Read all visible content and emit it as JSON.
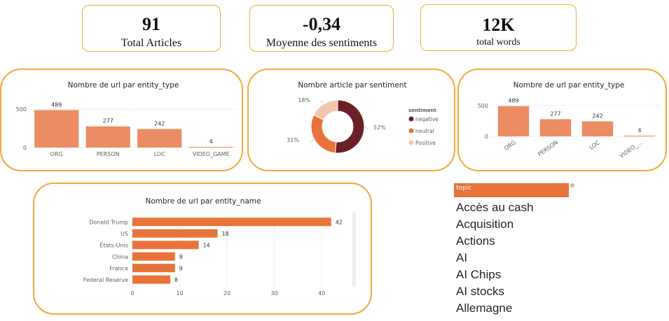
{
  "kpis": [
    {
      "value": "91",
      "label": "Total Articles"
    },
    {
      "value": "-0,34",
      "label": "Moyenne des sentiments"
    },
    {
      "value": "12K",
      "label": "total words"
    }
  ],
  "colors": {
    "card_border": "#f2a93b",
    "bar": "#ec8c63",
    "bar_dark": "#e8733a",
    "negative": "#6b1f27",
    "neutral": "#e8733a",
    "positive": "#f4c6ad"
  },
  "chart_data": [
    {
      "type": "bar",
      "title": "Nombre de url par entity_type",
      "categories": [
        "ORG",
        "PERSON",
        "LOC",
        "VIDEO_GAME"
      ],
      "values": [
        489,
        277,
        242,
        4
      ],
      "data_labels": [
        "489",
        "277",
        "242",
        "4"
      ],
      "y_ticks": [
        "500",
        "0"
      ],
      "ylim": [
        0,
        520
      ],
      "grid": true
    },
    {
      "type": "pie",
      "title": "Nombre article par sentiment",
      "legend_title": "sentiment",
      "legend_position": "right",
      "labels": [
        "negative",
        "neutral",
        "Positive"
      ],
      "values": [
        52,
        31,
        18
      ],
      "slice_labels": [
        "52%",
        "31%",
        "18%"
      ]
    },
    {
      "type": "bar",
      "title": "Nombre de url par entity_type",
      "categories": [
        "ORG",
        "PERSON",
        "LOC",
        "VIDEO_..."
      ],
      "values": [
        489,
        277,
        242,
        4
      ],
      "data_labels": [
        "489",
        "277",
        "242",
        "4"
      ],
      "y_ticks": [
        "500",
        "0"
      ],
      "ylim": [
        0,
        520
      ],
      "grid": true
    },
    {
      "type": "bar",
      "orientation": "horizontal",
      "title": "Nombre de url par entity_name",
      "categories": [
        "Donald Trump",
        "US",
        "États-Unis",
        "China",
        "France",
        "Federal Reserve"
      ],
      "values": [
        42,
        18,
        14,
        9,
        9,
        8
      ],
      "data_labels": [
        "42",
        "18",
        "14",
        "9",
        "9",
        "8"
      ],
      "x_ticks": [
        "0",
        "10",
        "20",
        "30",
        "40"
      ],
      "xlim": [
        0,
        45
      ],
      "grid": true
    }
  ],
  "slicer": {
    "header": "topic",
    "items": [
      "Accès au cash",
      "Acquisition",
      "Actions",
      "AI",
      "AI Chips",
      "AI stocks",
      "Allemagne"
    ]
  }
}
